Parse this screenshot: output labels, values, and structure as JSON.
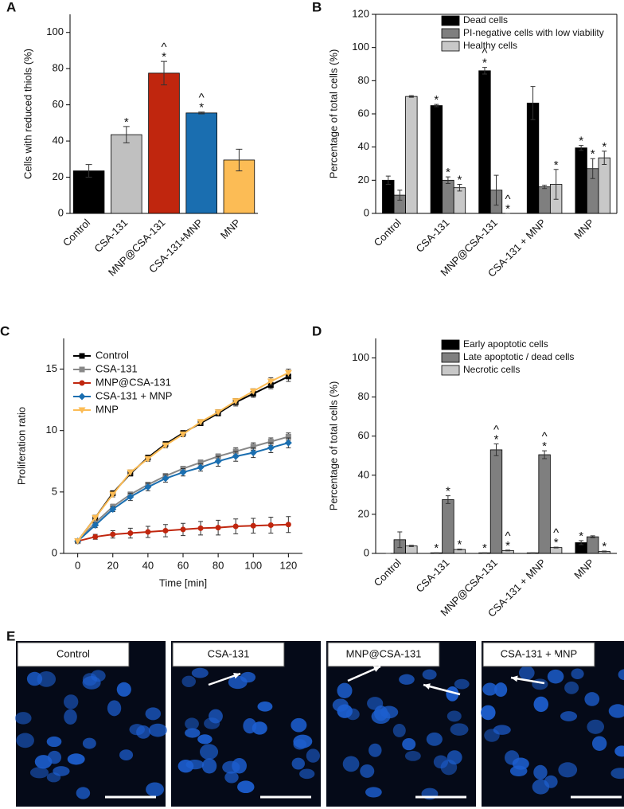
{
  "chart_data": [
    {
      "type": "bar",
      "panel": "A",
      "ylabel": "Cells with reduced thiols (%)",
      "categories": [
        "Control",
        "CSA-131",
        "MNP@CSA-131",
        "CSA-131+MNP",
        "MNP"
      ],
      "values": [
        23.5,
        43.5,
        77.5,
        55.5,
        29.5
      ],
      "errors": [
        3.5,
        4.5,
        6.5,
        0.5,
        6
      ],
      "colors": [
        "#000000",
        "#c0c0c0",
        "#c0260e",
        "#1a6eb0",
        "#fcbc55"
      ],
      "stars": [
        null,
        "*",
        "*",
        "*",
        null
      ],
      "carets": [
        null,
        null,
        "^",
        "^",
        null
      ],
      "ylim": [
        0,
        110
      ],
      "yticks": [
        0,
        20,
        40,
        60,
        80,
        100
      ]
    },
    {
      "type": "bar",
      "panel": "B",
      "ylabel": "Percentage of total cells (%)",
      "categories": [
        "Control",
        "CSA-131",
        "MNP@CSA-131",
        "CSA-131 + MNP",
        "MNP"
      ],
      "series": [
        {
          "name": "Dead cells",
          "color": "#000000",
          "values": [
            20,
            65,
            86,
            66.5,
            39.5
          ],
          "errors": [
            2.5,
            0.7,
            2,
            10,
            1.5
          ],
          "stars": [
            null,
            "*",
            "*",
            null,
            "*"
          ],
          "carets": [
            null,
            null,
            "^",
            null,
            null
          ]
        },
        {
          "name": "PI-negative cells with low viability",
          "color": "#7f7f7f",
          "values": [
            11,
            20,
            14,
            16,
            27
          ],
          "errors": [
            3,
            2,
            9,
            1,
            6
          ],
          "stars": [
            null,
            "*",
            null,
            null,
            "*"
          ],
          "carets": [
            null,
            null,
            null,
            null,
            null
          ]
        },
        {
          "name": "Healthy cells",
          "color": "#c8c8c8",
          "values": [
            70.5,
            15.5,
            0,
            17.5,
            33.5
          ],
          "errors": [
            0.5,
            2,
            0,
            9,
            4
          ],
          "stars": [
            null,
            "*",
            "*",
            "*",
            "*"
          ],
          "carets": [
            null,
            null,
            "^",
            null,
            null
          ]
        }
      ],
      "ylim": [
        0,
        120
      ],
      "yticks": [
        0,
        20,
        40,
        60,
        80,
        100,
        120
      ],
      "legend": "top-right"
    },
    {
      "type": "line",
      "panel": "C",
      "ylabel": "Proliferation ratio",
      "xlabel": "Time [min]",
      "x": [
        0,
        10,
        20,
        30,
        40,
        50,
        60,
        70,
        80,
        90,
        100,
        110,
        120
      ],
      "series": [
        {
          "name": "Control",
          "color": "#000000",
          "marker": "square",
          "values": [
            1,
            2.9,
            4.9,
            6.5,
            7.8,
            8.9,
            9.8,
            10.6,
            11.4,
            12.3,
            13.0,
            13.7,
            14.4
          ],
          "errors": [
            0.1,
            0.2,
            0.2,
            0.2,
            0.2,
            0.2,
            0.2,
            0.2,
            0.2,
            0.3,
            0.3,
            0.3,
            0.4
          ]
        },
        {
          "name": "CSA-131",
          "color": "#888888",
          "marker": "square",
          "values": [
            1,
            2.5,
            3.8,
            4.8,
            5.6,
            6.3,
            6.9,
            7.4,
            7.9,
            8.3,
            8.7,
            9.1,
            9.5
          ],
          "errors": [
            0.1,
            0.2,
            0.2,
            0.2,
            0.2,
            0.2,
            0.2,
            0.2,
            0.2,
            0.3,
            0.3,
            0.3,
            0.3
          ]
        },
        {
          "name": "MNP@CSA-131",
          "color": "#c0260e",
          "marker": "circle",
          "values": [
            1,
            1.35,
            1.55,
            1.65,
            1.75,
            1.85,
            1.95,
            2.05,
            2.1,
            2.2,
            2.25,
            2.3,
            2.35
          ],
          "errors": [
            0.1,
            0.2,
            0.3,
            0.4,
            0.45,
            0.5,
            0.5,
            0.55,
            0.6,
            0.6,
            0.6,
            0.65,
            0.65
          ]
        },
        {
          "name": "CSA-131 + MNP",
          "color": "#1a6eb0",
          "marker": "diamond",
          "values": [
            1,
            2.3,
            3.6,
            4.6,
            5.4,
            6.1,
            6.6,
            7.0,
            7.5,
            7.9,
            8.2,
            8.6,
            9.0
          ],
          "errors": [
            0.1,
            0.2,
            0.2,
            0.3,
            0.3,
            0.3,
            0.3,
            0.3,
            0.4,
            0.4,
            0.4,
            0.4,
            0.4
          ]
        },
        {
          "name": "MNP",
          "color": "#fcbc55",
          "marker": "triangle",
          "values": [
            1,
            2.9,
            4.8,
            6.6,
            7.7,
            8.8,
            9.7,
            10.7,
            11.5,
            12.4,
            13.2,
            14.0,
            14.7
          ],
          "errors": [
            0.1,
            0.2,
            0.2,
            0.2,
            0.2,
            0.2,
            0.2,
            0.2,
            0.2,
            0.2,
            0.2,
            0.3,
            0.3
          ]
        }
      ],
      "xlim": [
        -8,
        128
      ],
      "xticks": [
        0,
        20,
        40,
        60,
        80,
        100,
        120
      ],
      "ylim": [
        0,
        17.5
      ],
      "yticks": [
        0,
        5,
        10,
        15
      ],
      "legend": "top-left"
    },
    {
      "type": "bar",
      "panel": "D",
      "ylabel": "Percentage of total cells (%)",
      "categories": [
        "Control",
        "CSA-131",
        "MNP@CSA-131",
        "CSA-131 + MNP",
        "MNP"
      ],
      "series": [
        {
          "name": "Early apoptotic cells",
          "color": "#000000",
          "values": [
            0,
            0.3,
            0.3,
            0.3,
            5.5
          ],
          "errors": [
            0,
            0,
            0,
            0,
            1
          ],
          "stars": [
            null,
            "*",
            "*",
            null,
            "*"
          ],
          "carets": [
            null,
            null,
            null,
            null,
            null
          ]
        },
        {
          "name": "Late apoptotic / dead cells",
          "color": "#7f7f7f",
          "values": [
            7,
            27.5,
            53,
            50.5,
            8.5
          ],
          "errors": [
            4,
            2,
            3,
            2,
            0.5
          ],
          "stars": [
            null,
            "*",
            "*",
            "*",
            null
          ],
          "carets": [
            null,
            null,
            "^",
            "^",
            null
          ]
        },
        {
          "name": "Necrotic cells",
          "color": "#c8c8c8",
          "values": [
            3.8,
            2,
            1.5,
            3,
            1
          ],
          "errors": [
            0.3,
            0.2,
            0.2,
            0.2,
            0.2
          ],
          "stars": [
            null,
            "*",
            "*",
            "*",
            "*"
          ],
          "carets": [
            null,
            null,
            "^",
            "^",
            null
          ]
        }
      ],
      "ylim": [
        0,
        110
      ],
      "yticks": [
        0,
        20,
        40,
        60,
        80,
        100
      ],
      "legend": "top-right"
    }
  ],
  "images": {
    "panel": "E",
    "labels": [
      "Control",
      "CSA-131",
      "MNP@CSA-131",
      "CSA-131 + MNP"
    ]
  }
}
